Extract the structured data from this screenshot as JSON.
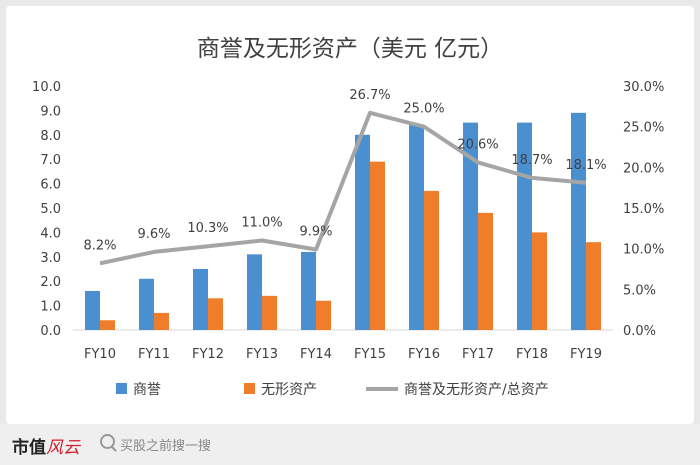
{
  "footer": {
    "brand_text": "市值",
    "brand_script": "风云",
    "search_hint": "买股之前搜一搜"
  },
  "chart_data": {
    "type": "bar",
    "title": "商誉及无形资产（美元 亿元）",
    "categories": [
      "FY10",
      "FY11",
      "FY12",
      "FY13",
      "FY14",
      "FY15",
      "FY16",
      "FY17",
      "FY18",
      "FY19"
    ],
    "series": [
      {
        "name": "商誉",
        "kind": "bar",
        "axis": "left",
        "color": "#4a90d0",
        "values": [
          1.6,
          2.1,
          2.5,
          3.1,
          3.2,
          8.0,
          8.4,
          8.5,
          8.5,
          8.9
        ]
      },
      {
        "name": "无形资产",
        "kind": "bar",
        "axis": "left",
        "color": "#f07d2a",
        "values": [
          0.4,
          0.7,
          1.3,
          1.4,
          1.2,
          6.9,
          5.7,
          4.8,
          4.0,
          3.6
        ]
      },
      {
        "name": "商誉及无形资产/总资产",
        "kind": "line",
        "axis": "right",
        "color": "#a5a5a5",
        "values": [
          8.2,
          9.6,
          10.3,
          11.0,
          9.9,
          26.7,
          25.0,
          20.6,
          18.7,
          18.1
        ],
        "labels": [
          "8.2%",
          "9.6%",
          "10.3%",
          "11.0%",
          "9.9%",
          "26.7%",
          "25.0%",
          "20.6%",
          "18.7%",
          "18.1%"
        ]
      }
    ],
    "y_left": {
      "min": 0,
      "max": 10,
      "step": 1,
      "ticks": [
        "0.0",
        "1.0",
        "2.0",
        "3.0",
        "4.0",
        "5.0",
        "6.0",
        "7.0",
        "8.0",
        "9.0",
        "10.0"
      ]
    },
    "y_right": {
      "min": 0,
      "max": 30,
      "step": 5,
      "ticks": [
        "0.0%",
        "5.0%",
        "10.0%",
        "15.0%",
        "20.0%",
        "25.0%",
        "30.0%"
      ]
    },
    "grid": false,
    "legend_position": "bottom"
  }
}
